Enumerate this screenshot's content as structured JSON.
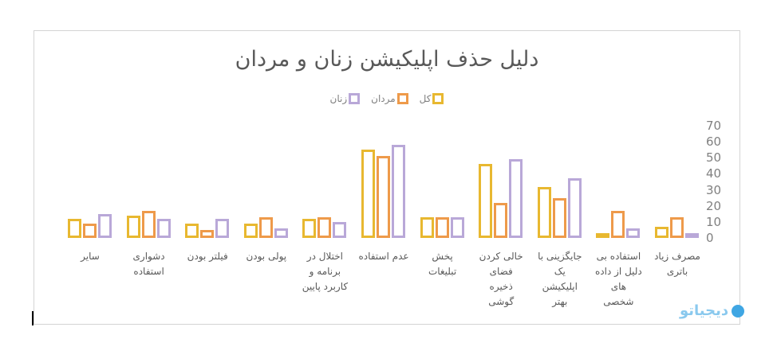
{
  "chart_data": {
    "type": "bar",
    "title": "دلیل حذف اپلیکیشن زنان و مردان",
    "xlabel": "",
    "ylabel": "",
    "ylim": [
      0,
      70
    ],
    "yticks": [
      0,
      10,
      20,
      30,
      40,
      50,
      60,
      70
    ],
    "grid": false,
    "legend_position": "top",
    "bar_style": "hollow-outline",
    "direction": "rtl",
    "categories": [
      "مصرف زیاد باتری",
      "استفاده بی دلیل از داده های شخصی",
      "جایگزینی با یک اپلیکیشن بهتر",
      "خالی کردن فضای ذخیره گوشی",
      "پخش تبلیغات",
      "عدم استفاده",
      "اختلال در برنامه و کاربرد پایین",
      "پولی بودن",
      "فیلتر بودن",
      "دشواری استفاده",
      "سایر"
    ],
    "series": [
      {
        "name": "کل",
        "color": "#E8B830",
        "values": [
          7,
          1,
          32,
          46,
          13,
          55,
          12,
          9,
          9,
          14,
          12
        ]
      },
      {
        "name": "مردان",
        "color": "#EE9A4A",
        "values": [
          13,
          17,
          25,
          22,
          13,
          51,
          13,
          13,
          5,
          17,
          9
        ]
      },
      {
        "name": "زنان",
        "color": "#B9A8D8",
        "values": [
          3,
          6,
          37,
          49,
          13,
          58,
          10,
          6,
          12,
          12,
          15
        ]
      }
    ]
  },
  "category_labels_wrapped": [
    "مصرف زیاد\nباتری",
    "استفاده بی\nدلیل از داده\nهای\nشخصی",
    "جایگزینی با\nیک\nاپلیکیشن\nبهتر",
    "خالی کردن\nفضای\nذخیره\nگوشی",
    "پخش\nتبلیغات",
    "عدم استفاده",
    "اختلال در\nبرنامه و\nکاربرد پایین",
    "پولی بودن",
    "فیلتر بودن",
    "دشواری\nاستفاده",
    "سایر"
  ],
  "watermark": {
    "text": "دیجیاتو"
  }
}
